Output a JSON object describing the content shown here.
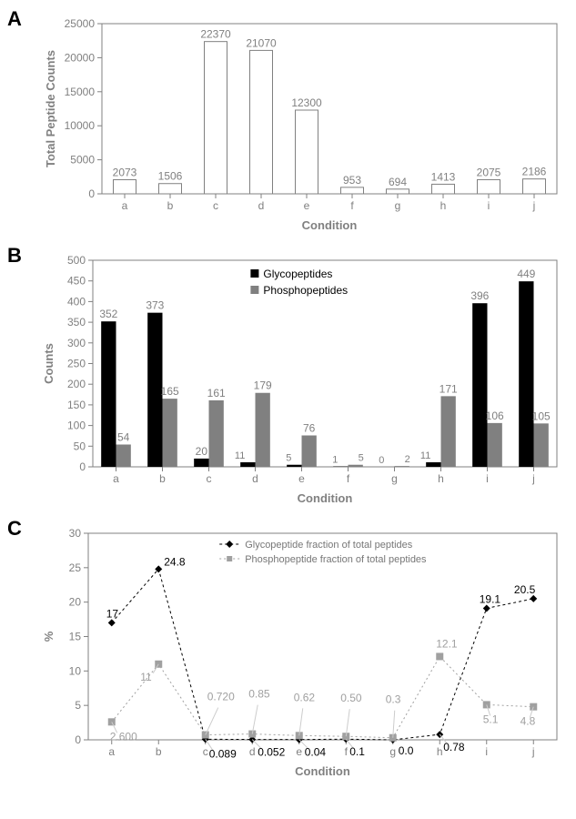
{
  "panelA": {
    "label": "A",
    "type": "bar",
    "categories": [
      "a",
      "b",
      "c",
      "d",
      "e",
      "f",
      "g",
      "h",
      "i",
      "j"
    ],
    "values": [
      2073,
      1506,
      22370,
      21070,
      12300,
      953,
      694,
      1413,
      2075,
      2186
    ],
    "bar_fill": "#ffffff",
    "bar_stroke": "#808080",
    "bar_width": 0.5,
    "ylabel": "Total Peptide Counts",
    "xlabel": "Condition",
    "ylim": [
      0,
      25000
    ],
    "ytick_step": 5000,
    "background_color": "#ffffff",
    "axis_color": "#808080",
    "label_fontsize": 12,
    "axis_title_fontsize": 13
  },
  "panelB": {
    "label": "B",
    "type": "grouped-bar",
    "categories": [
      "a",
      "b",
      "c",
      "d",
      "e",
      "f",
      "g",
      "h",
      "i",
      "j"
    ],
    "series": [
      {
        "name": "Glycopeptides",
        "color": "#000000",
        "values": [
          352,
          373,
          20,
          11,
          5,
          1,
          0,
          11,
          396,
          449
        ]
      },
      {
        "name": "Phosphopeptides",
        "color": "#808080",
        "values": [
          54,
          165,
          161,
          179,
          76,
          5,
          2,
          171,
          106,
          105
        ]
      }
    ],
    "bar_width": 0.32,
    "ylabel": "Counts",
    "xlabel": "Condition",
    "ylim": [
      0,
      500
    ],
    "ytick_step": 50,
    "background_color": "#ffffff",
    "axis_color": "#808080",
    "legend_marker_size": 8
  },
  "panelC": {
    "label": "C",
    "type": "line",
    "categories": [
      "a",
      "b",
      "c",
      "d",
      "e",
      "f",
      "g",
      "h",
      "i",
      "j"
    ],
    "series": [
      {
        "name": "Glycopeptide fraction of total peptides",
        "color": "#000000",
        "marker": "diamond",
        "marker_size": 4,
        "dash": "3,3",
        "values": [
          17,
          24.8,
          0.089,
          0.052,
          0.04,
          0.1,
          0.0,
          0.78,
          19.1,
          20.5
        ],
        "value_labels": [
          "17",
          "24.8",
          "0.089",
          "0.052",
          "0.04",
          "0.1",
          "0.0",
          "0.78",
          "19.1",
          "20.5"
        ]
      },
      {
        "name": "Phosphopeptide fraction of total peptides",
        "color": "#a0a0a0",
        "marker": "square",
        "marker_size": 4,
        "dash": "2,3",
        "values": [
          2.6,
          11,
          0.72,
          0.85,
          0.62,
          0.5,
          0.3,
          12.1,
          5.1,
          4.8
        ],
        "value_labels": [
          "2.600",
          "11",
          "0.720",
          "0.85",
          "0.62",
          "0.50",
          "0.3",
          "12.1",
          "5.1",
          "4.8"
        ]
      }
    ],
    "ylabel": "%",
    "xlabel": "Condition",
    "ylim": [
      0,
      30
    ],
    "ytick_step": 5,
    "background_color": "#ffffff",
    "axis_color": "#808080"
  }
}
